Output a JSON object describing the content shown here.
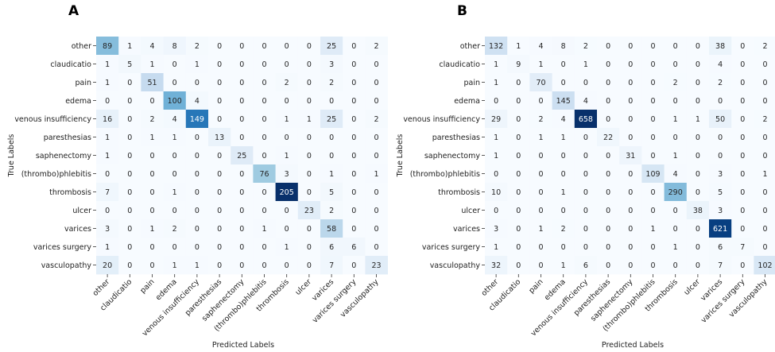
{
  "chart_data": [
    {
      "type": "heatmap",
      "panel": "A",
      "xlabel": "Predicted Labels",
      "ylabel": "True Labels",
      "row_labels": [
        "other",
        "claudicatio",
        "pain",
        "edema",
        "venous insufficiency",
        "paresthesias",
        "saphenectomy",
        "(thrombo)phlebitis",
        "thrombosis",
        "ulcer",
        "varices",
        "varices surgery",
        "vasculopathy"
      ],
      "col_labels": [
        "other",
        "claudicatio",
        "pain",
        "edema",
        "venous insufficiency",
        "paresthesias",
        "saphenectomy",
        "(thrombo)phlebitis",
        "thrombosis",
        "ulcer",
        "varices",
        "varices surgery",
        "vasculopathy"
      ],
      "colorscale": "Blues",
      "values": [
        [
          89,
          1,
          4,
          8,
          2,
          0,
          0,
          0,
          0,
          0,
          25,
          0,
          2
        ],
        [
          1,
          5,
          1,
          0,
          1,
          0,
          0,
          0,
          0,
          0,
          3,
          0,
          0
        ],
        [
          1,
          0,
          51,
          0,
          0,
          0,
          0,
          0,
          2,
          0,
          2,
          0,
          0
        ],
        [
          0,
          0,
          0,
          100,
          4,
          0,
          0,
          0,
          0,
          0,
          0,
          0,
          0
        ],
        [
          16,
          0,
          2,
          4,
          149,
          0,
          0,
          0,
          1,
          1,
          25,
          0,
          2
        ],
        [
          1,
          0,
          1,
          1,
          0,
          13,
          0,
          0,
          0,
          0,
          0,
          0,
          0
        ],
        [
          1,
          0,
          0,
          0,
          0,
          0,
          25,
          0,
          1,
          0,
          0,
          0,
          0
        ],
        [
          0,
          0,
          0,
          0,
          0,
          0,
          0,
          76,
          3,
          0,
          1,
          0,
          1
        ],
        [
          7,
          0,
          0,
          1,
          0,
          0,
          0,
          0,
          205,
          0,
          5,
          0,
          0
        ],
        [
          0,
          0,
          0,
          0,
          0,
          0,
          0,
          0,
          0,
          23,
          2,
          0,
          0
        ],
        [
          3,
          0,
          1,
          2,
          0,
          0,
          0,
          1,
          0,
          0,
          58,
          0,
          0
        ],
        [
          1,
          0,
          0,
          0,
          0,
          0,
          0,
          0,
          1,
          0,
          6,
          6,
          0
        ],
        [
          20,
          0,
          0,
          1,
          1,
          0,
          0,
          0,
          0,
          0,
          7,
          0,
          23
        ]
      ]
    },
    {
      "type": "heatmap",
      "panel": "B",
      "xlabel": "Predicted Labels",
      "ylabel": "True Labels",
      "row_labels": [
        "other",
        "claudicatio",
        "pain",
        "edema",
        "venous insufficiency",
        "paresthesias",
        "saphenectomy",
        "(thrombo)phlebitis",
        "thrombosis",
        "ulcer",
        "varices",
        "varices surgery",
        "vasculopathy"
      ],
      "col_labels": [
        "other",
        "claudicatio",
        "pain",
        "edema",
        "venous insufficiency",
        "paresthesias",
        "saphenectomy",
        "(thrombo)phlebitis",
        "thrombosis",
        "ulcer",
        "varices",
        "varices surgery",
        "vasculopathy"
      ],
      "colorscale": "Blues",
      "values": [
        [
          132,
          1,
          4,
          8,
          2,
          0,
          0,
          0,
          0,
          0,
          38,
          0,
          2
        ],
        [
          1,
          9,
          1,
          0,
          1,
          0,
          0,
          0,
          0,
          0,
          4,
          0,
          0
        ],
        [
          1,
          0,
          70,
          0,
          0,
          0,
          0,
          0,
          2,
          0,
          2,
          0,
          0
        ],
        [
          0,
          0,
          0,
          145,
          4,
          0,
          0,
          0,
          0,
          0,
          0,
          0,
          0
        ],
        [
          29,
          0,
          2,
          4,
          658,
          0,
          0,
          0,
          1,
          1,
          50,
          0,
          2
        ],
        [
          1,
          0,
          1,
          1,
          0,
          22,
          0,
          0,
          0,
          0,
          0,
          0,
          0
        ],
        [
          1,
          0,
          0,
          0,
          0,
          0,
          31,
          0,
          1,
          0,
          0,
          0,
          0
        ],
        [
          0,
          0,
          0,
          0,
          0,
          0,
          0,
          109,
          4,
          0,
          3,
          0,
          1
        ],
        [
          10,
          0,
          0,
          1,
          0,
          0,
          0,
          0,
          290,
          0,
          5,
          0,
          0
        ],
        [
          0,
          0,
          0,
          0,
          0,
          0,
          0,
          0,
          0,
          38,
          3,
          0,
          0
        ],
        [
          3,
          0,
          1,
          2,
          0,
          0,
          0,
          1,
          0,
          0,
          621,
          0,
          0
        ],
        [
          1,
          0,
          0,
          0,
          0,
          0,
          0,
          0,
          1,
          0,
          6,
          7,
          0
        ],
        [
          32,
          0,
          0,
          1,
          6,
          0,
          0,
          0,
          0,
          0,
          7,
          0,
          102
        ]
      ]
    }
  ]
}
